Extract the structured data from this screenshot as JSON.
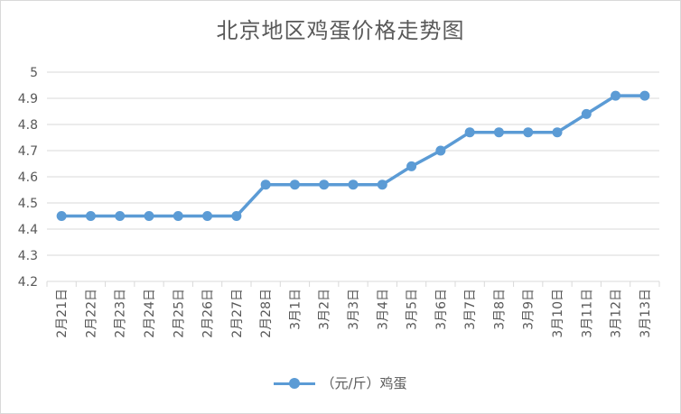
{
  "chart_data": {
    "type": "line",
    "title": "北京地区鸡蛋价格走势图",
    "categories": [
      "2月21日",
      "2月22日",
      "2月23日",
      "2月24日",
      "2月25日",
      "2月26日",
      "2月27日",
      "2月28日",
      "3月1日",
      "3月2日",
      "3月3日",
      "3月4日",
      "3月5日",
      "3月6日",
      "3月7日",
      "3月8日",
      "3月9日",
      "3月10日",
      "3月11日",
      "3月12日",
      "3月13日"
    ],
    "series": [
      {
        "name": "（元/斤）鸡蛋",
        "values": [
          4.45,
          4.45,
          4.45,
          4.45,
          4.45,
          4.45,
          4.45,
          4.57,
          4.57,
          4.57,
          4.57,
          4.57,
          4.64,
          4.7,
          4.77,
          4.77,
          4.77,
          4.77,
          4.84,
          4.91,
          4.91
        ]
      }
    ],
    "ylim": [
      4.2,
      5
    ],
    "yticks": [
      "4.2",
      "4.3",
      "4.4",
      "4.5",
      "4.6",
      "4.7",
      "4.8",
      "4.9",
      "5"
    ],
    "grid": true,
    "legend_position": "bottom",
    "color": "#5b9bd5"
  }
}
